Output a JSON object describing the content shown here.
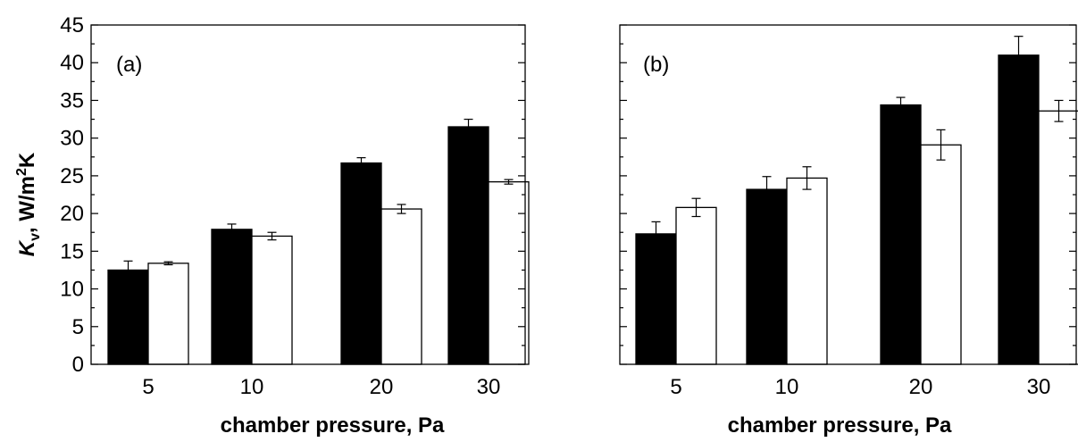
{
  "figure": {
    "ylabel_main": "K",
    "ylabel_sub": "v",
    "ylabel_rest": ", W/m",
    "ylabel_sup": "2",
    "ylabel_end": "K"
  },
  "colors": {
    "filled": "#000000",
    "open": "#ffffff",
    "axis": "#000000"
  },
  "chart_data": [
    {
      "type": "bar",
      "panel_label": "(a)",
      "xlabel": "chamber pressure, Pa",
      "categories": [
        "5",
        "10",
        "20",
        "30"
      ],
      "ylim": [
        0,
        45
      ],
      "y_ticks": [
        0,
        5,
        10,
        15,
        20,
        25,
        30,
        35,
        40,
        45
      ],
      "y_minor_step": 2.5,
      "grid": false,
      "legend": "none",
      "series": [
        {
          "style": "filled",
          "values": [
            12.5,
            17.9,
            26.7,
            31.5
          ],
          "errors": [
            1.2,
            0.7,
            0.7,
            1.0
          ]
        },
        {
          "style": "open",
          "values": [
            13.4,
            17.0,
            20.6,
            24.2
          ],
          "errors": [
            0.2,
            0.5,
            0.6,
            0.3
          ]
        }
      ]
    },
    {
      "type": "bar",
      "panel_label": "(b)",
      "xlabel": "chamber pressure, Pa",
      "categories": [
        "5",
        "10",
        "20",
        "30"
      ],
      "ylim": [
        0,
        45
      ],
      "y_ticks": [
        0,
        5,
        10,
        15,
        20,
        25,
        30,
        35,
        40,
        45
      ],
      "y_minor_step": 2.5,
      "grid": false,
      "legend": "none",
      "series": [
        {
          "style": "filled",
          "values": [
            17.3,
            23.2,
            34.4,
            41.0
          ],
          "errors": [
            1.6,
            1.7,
            1.0,
            2.5
          ]
        },
        {
          "style": "open",
          "values": [
            20.8,
            24.7,
            29.1,
            33.6
          ],
          "errors": [
            1.2,
            1.5,
            2.0,
            1.4
          ]
        }
      ]
    }
  ]
}
